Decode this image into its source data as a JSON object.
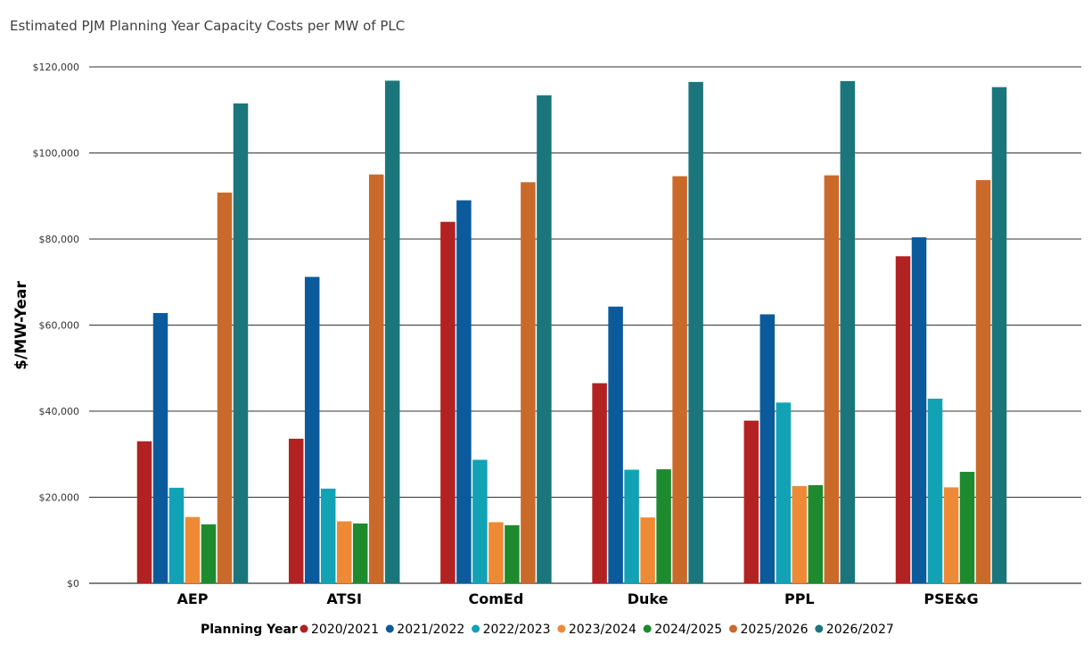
{
  "chart_data": {
    "type": "bar",
    "title": "Estimated PJM Planning Year Capacity Costs per MW of PLC",
    "ylabel": "$/MW-Year",
    "xlabel": "",
    "ylim": [
      0,
      120000
    ],
    "y_ticks": [
      0,
      20000,
      40000,
      60000,
      80000,
      100000,
      120000
    ],
    "y_tick_labels": [
      "$0",
      "$20,000",
      "$40,000",
      "$60,000",
      "$80,000",
      "$100,000",
      "$120,000"
    ],
    "grid": true,
    "legend_title": "Planning Year",
    "legend_position": "bottom",
    "categories": [
      "AEP",
      "ATSI",
      "ComEd",
      "Duke",
      "PPL",
      "PSE&G"
    ],
    "series": [
      {
        "name": "2020/2021",
        "color": "#b22222",
        "values": [
          33000,
          33600,
          84000,
          46500,
          37800,
          76000
        ]
      },
      {
        "name": "2021/2022",
        "color": "#0b5a9c",
        "values": [
          62800,
          71200,
          89000,
          64300,
          62500,
          80400
        ]
      },
      {
        "name": "2022/2023",
        "color": "#11a3b5",
        "values": [
          22200,
          22000,
          28700,
          26400,
          42000,
          42900
        ]
      },
      {
        "name": "2023/2024",
        "color": "#ee8a35",
        "values": [
          15400,
          14400,
          14200,
          15300,
          22600,
          22300
        ]
      },
      {
        "name": "2024/2025",
        "color": "#1d8a2e",
        "values": [
          13700,
          13900,
          13500,
          26500,
          22800,
          25900
        ]
      },
      {
        "name": "2025/2026",
        "color": "#c96a2b",
        "values": [
          90800,
          95000,
          93200,
          94600,
          94800,
          93700
        ]
      },
      {
        "name": "2026/2027",
        "color": "#1b767c",
        "values": [
          111500,
          116800,
          113400,
          116500,
          116700,
          115300
        ]
      }
    ]
  }
}
